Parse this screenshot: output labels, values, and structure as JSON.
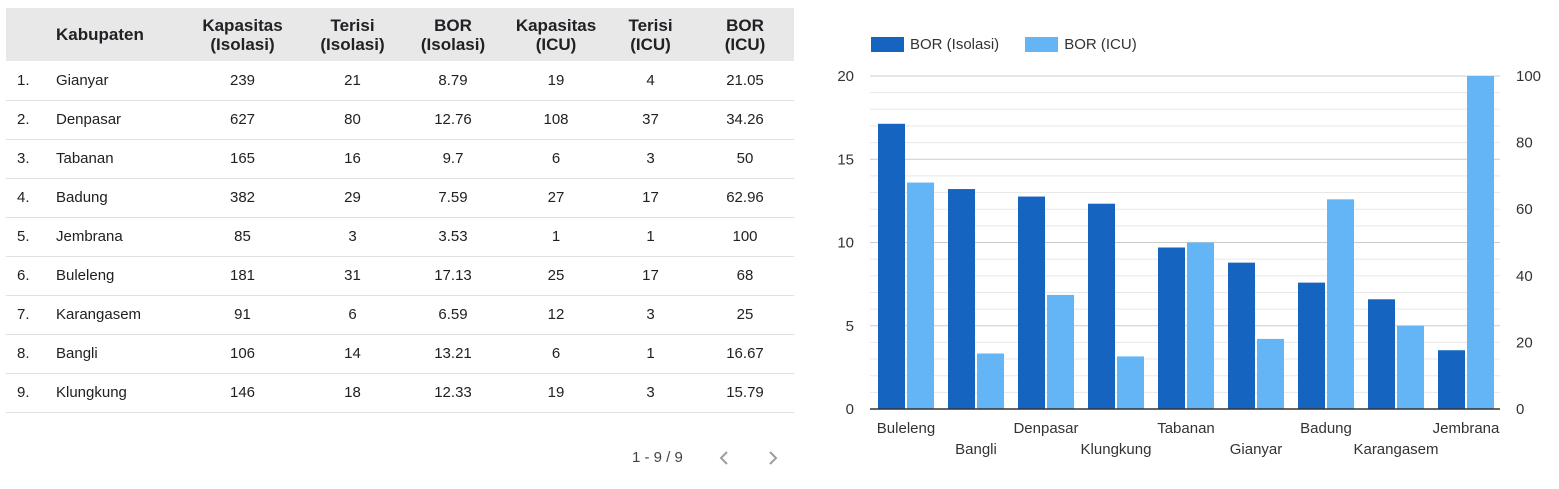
{
  "table": {
    "columns": [
      {
        "key": "no",
        "label": ""
      },
      {
        "key": "kabupaten",
        "label": "Kabupaten"
      },
      {
        "key": "kap_isolasi",
        "label": "Kapasitas (Isolasi)"
      },
      {
        "key": "terisi_isolasi",
        "label": "Terisi (Isolasi)"
      },
      {
        "key": "bor_isolasi",
        "label": "BOR (Isolasi)"
      },
      {
        "key": "kap_icu",
        "label": "Kapasitas (ICU)"
      },
      {
        "key": "terisi_icu",
        "label": "Terisi (ICU)"
      },
      {
        "key": "bor_icu",
        "label": "BOR (ICU)"
      }
    ],
    "header_lines": {
      "kap_isolasi": [
        "Kapasitas",
        "(Isolasi)"
      ],
      "terisi_isolasi": [
        "Terisi",
        "(Isolasi)"
      ],
      "bor_isolasi": [
        "BOR",
        "(Isolasi)"
      ],
      "kap_icu": [
        "Kapasitas",
        "(ICU)"
      ],
      "terisi_icu": [
        "Terisi",
        "(ICU)"
      ],
      "bor_icu": [
        "BOR",
        "(ICU)"
      ]
    },
    "rows": [
      {
        "no": "1.",
        "kabupaten": "Gianyar",
        "kap_isolasi": "239",
        "terisi_isolasi": "21",
        "bor_isolasi": "8.79",
        "kap_icu": "19",
        "terisi_icu": "4",
        "bor_icu": "21.05"
      },
      {
        "no": "2.",
        "kabupaten": "Denpasar",
        "kap_isolasi": "627",
        "terisi_isolasi": "80",
        "bor_isolasi": "12.76",
        "kap_icu": "108",
        "terisi_icu": "37",
        "bor_icu": "34.26"
      },
      {
        "no": "3.",
        "kabupaten": "Tabanan",
        "kap_isolasi": "165",
        "terisi_isolasi": "16",
        "bor_isolasi": "9.7",
        "kap_icu": "6",
        "terisi_icu": "3",
        "bor_icu": "50"
      },
      {
        "no": "4.",
        "kabupaten": "Badung",
        "kap_isolasi": "382",
        "terisi_isolasi": "29",
        "bor_isolasi": "7.59",
        "kap_icu": "27",
        "terisi_icu": "17",
        "bor_icu": "62.96"
      },
      {
        "no": "5.",
        "kabupaten": "Jembrana",
        "kap_isolasi": "85",
        "terisi_isolasi": "3",
        "bor_isolasi": "3.53",
        "kap_icu": "1",
        "terisi_icu": "1",
        "bor_icu": "100"
      },
      {
        "no": "6.",
        "kabupaten": "Buleleng",
        "kap_isolasi": "181",
        "terisi_isolasi": "31",
        "bor_isolasi": "17.13",
        "kap_icu": "25",
        "terisi_icu": "17",
        "bor_icu": "68"
      },
      {
        "no": "7.",
        "kabupaten": "Karangasem",
        "kap_isolasi": "91",
        "terisi_isolasi": "6",
        "bor_isolasi": "6.59",
        "kap_icu": "12",
        "terisi_icu": "3",
        "bor_icu": "25"
      },
      {
        "no": "8.",
        "kabupaten": "Bangli",
        "kap_isolasi": "106",
        "terisi_isolasi": "14",
        "bor_isolasi": "13.21",
        "kap_icu": "6",
        "terisi_icu": "1",
        "bor_icu": "16.67"
      },
      {
        "no": "9.",
        "kabupaten": "Klungkung",
        "kap_isolasi": "146",
        "terisi_isolasi": "18",
        "bor_isolasi": "12.33",
        "kap_icu": "19",
        "terisi_icu": "3",
        "bor_icu": "15.79"
      }
    ]
  },
  "pagination": {
    "label": "1 - 9 / 9",
    "prev_icon": "chevron-left-icon",
    "next_icon": "chevron-right-icon"
  },
  "chart_data": [
    {
      "type": "table",
      "columns": [
        "",
        "Kabupaten",
        "Kapasitas (Isolasi)",
        "Terisi (Isolasi)",
        "BOR (Isolasi)",
        "Kapasitas (ICU)",
        "Terisi (ICU)",
        "BOR (ICU)"
      ]
    },
    {
      "type": "bar",
      "title": "",
      "xlabel": "",
      "ylabel": "",
      "categories": [
        "Buleleng",
        "Bangli",
        "Denpasar",
        "Klungkung",
        "Tabanan",
        "Gianyar",
        "Badung",
        "Karangasem",
        "Jembrana"
      ],
      "series": [
        {
          "name": "BOR (Isolasi)",
          "axis": "left",
          "color": "#1565c0",
          "values": [
            17.13,
            13.21,
            12.76,
            12.33,
            9.7,
            8.79,
            7.59,
            6.59,
            3.53
          ]
        },
        {
          "name": "BOR (ICU)",
          "axis": "right",
          "color": "#64b5f6",
          "values": [
            68,
            16.67,
            34.26,
            15.79,
            50,
            21.05,
            62.96,
            25,
            100
          ]
        }
      ],
      "ylim": [
        0,
        20
      ],
      "y2lim": [
        0,
        100
      ],
      "yticks": [
        0,
        5,
        10,
        15,
        20
      ],
      "y2ticks": [
        0,
        20,
        40,
        60,
        80,
        100
      ],
      "grid": true,
      "legend": "top-left"
    }
  ]
}
